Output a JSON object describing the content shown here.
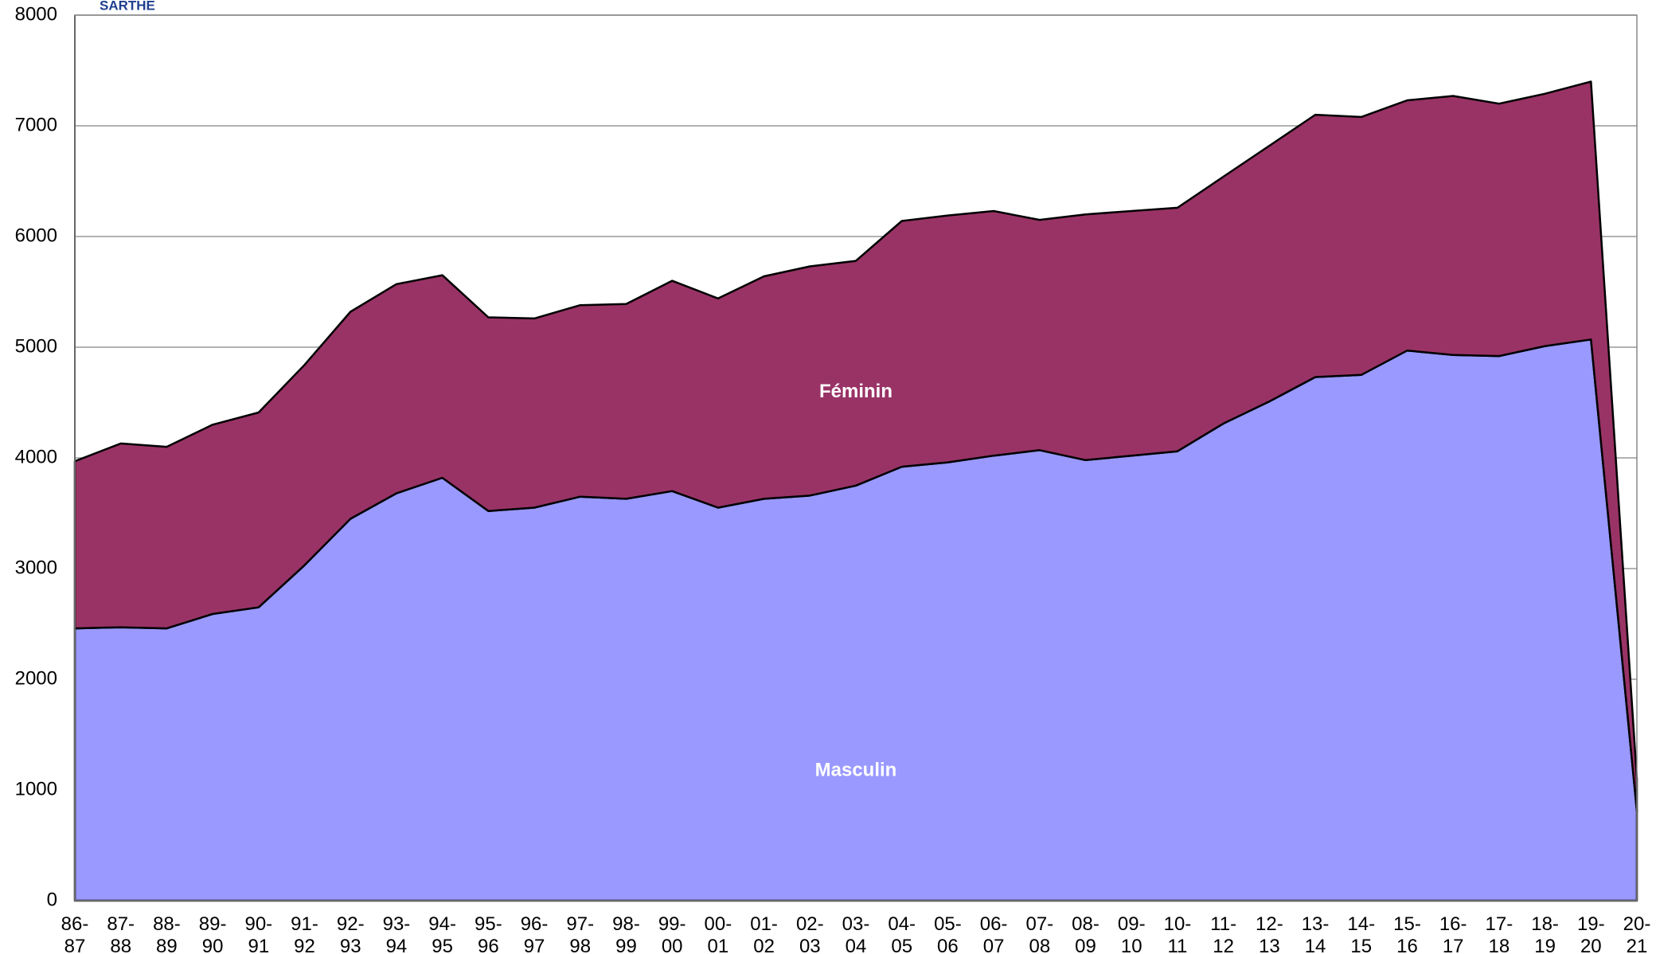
{
  "chart_data": {
    "type": "stacked_area",
    "title": "SARTHE",
    "categories": [
      "86-87",
      "87-88",
      "88-89",
      "89-90",
      "90-91",
      "91-92",
      "92-93",
      "93-94",
      "94-95",
      "95-96",
      "96-97",
      "97-98",
      "98-99",
      "99-00",
      "00-01",
      "01-02",
      "02-03",
      "03-04",
      "04-05",
      "05-06",
      "06-07",
      "07-08",
      "08-09",
      "09-10",
      "10-11",
      "11-12",
      "12-13",
      "13-14",
      "14-15",
      "15-16",
      "16-17",
      "17-18",
      "18-19",
      "19-20",
      "20-21"
    ],
    "series": [
      {
        "name": "Masculin",
        "color": "#9999ff",
        "values": [
          2460,
          2470,
          2460,
          2590,
          2650,
          3030,
          3450,
          3680,
          3820,
          3520,
          3550,
          3650,
          3630,
          3700,
          3550,
          3630,
          3660,
          3750,
          3920,
          3960,
          4020,
          4070,
          3980,
          4020,
          4060,
          4310,
          4510,
          4730,
          4750,
          4970,
          4930,
          4920,
          5010,
          5070,
          810
        ]
      },
      {
        "name": "Féminin",
        "color": "#993366",
        "values": [
          1510,
          1660,
          1640,
          1710,
          1760,
          1810,
          1870,
          1890,
          1830,
          1750,
          1710,
          1730,
          1760,
          1900,
          1890,
          2010,
          2070,
          2030,
          2220,
          2230,
          2210,
          2080,
          2220,
          2210,
          2200,
          2230,
          2310,
          2370,
          2330,
          2260,
          2340,
          2280,
          2280,
          2330,
          290
        ]
      }
    ],
    "ylim": [
      0,
      8000
    ],
    "yticks": [
      0,
      1000,
      2000,
      3000,
      4000,
      5000,
      6000,
      7000,
      8000
    ],
    "grid": true
  }
}
